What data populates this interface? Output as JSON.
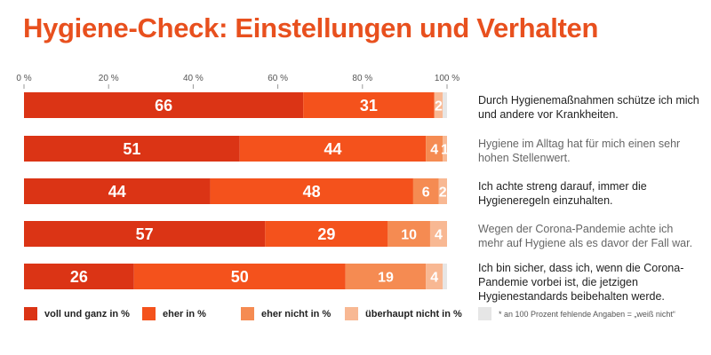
{
  "title": "Hygiene-Check: Einstellungen und Verhalten",
  "chart_data": {
    "type": "bar",
    "orientation": "horizontal",
    "stacked": true,
    "xlim": [
      0,
      100
    ],
    "xticks": [
      "0 %",
      "20 %",
      "40 %",
      "60 %",
      "80 %",
      "100 %"
    ],
    "categories": [
      "Durch Hygienemaßnahmen schütze ich mich und andere vor Krankheiten.",
      "Hygiene im Alltag hat für mich einen sehr hohen Stellenwert.",
      "Ich achte streng darauf, immer die Hygieneregeln einzuhalten.",
      "Wegen der Corona-Pandemie achte ich mehr auf Hygiene als es davor der Fall war.",
      "Ich bin sicher, dass ich, wenn die Corona-Pandemie vorbei ist, die jetzigen Hygienestandards beibehalten werde."
    ],
    "series": [
      {
        "name": "voll und ganz in %",
        "color": "#db3415",
        "values": [
          66,
          51,
          44,
          57,
          26
        ]
      },
      {
        "name": "eher in %",
        "color": "#f4521c",
        "values": [
          31,
          44,
          48,
          29,
          50
        ]
      },
      {
        "name": "eher nicht in %",
        "color": "#f58b52",
        "values": [
          null,
          4,
          6,
          10,
          19
        ]
      },
      {
        "name": "überhaupt nicht in %",
        "color": "#f8b893",
        "values": [
          2,
          1,
          2,
          4,
          4
        ]
      }
    ],
    "missing": {
      "name": "* an 100 Prozent fehlende Angaben = „weiß nicht“",
      "color": "#e6e6e6"
    },
    "legend_position": "bottom"
  }
}
